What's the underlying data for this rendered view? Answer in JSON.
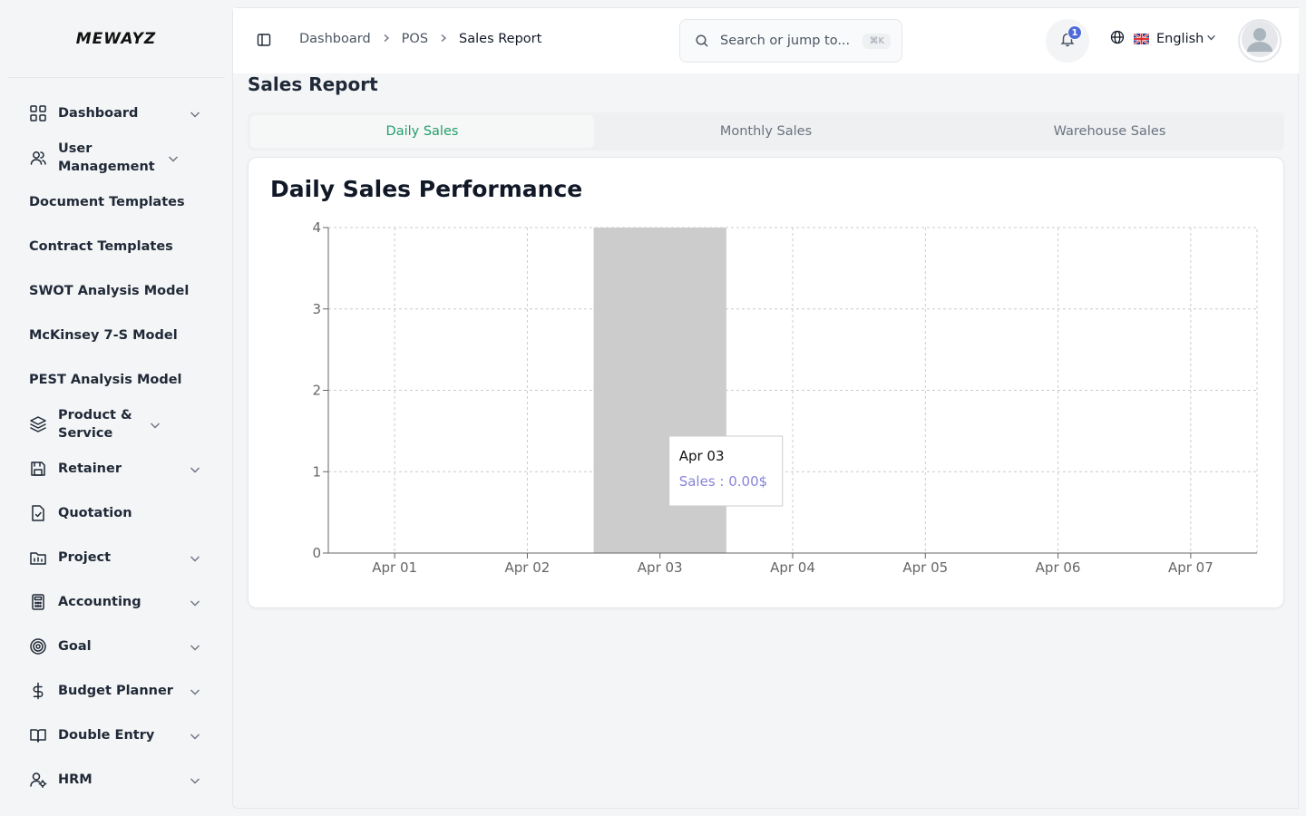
{
  "brand": {
    "name": "MEWAYZ"
  },
  "sidebar": {
    "items": [
      {
        "label": "Dashboard",
        "icon": "dashboard-grid-icon",
        "chevron": true
      },
      {
        "label": "User Management",
        "icon": "users-icon",
        "chevron": true
      },
      {
        "label": "Document Templates",
        "icon": "",
        "chevron": false
      },
      {
        "label": "Contract Templates",
        "icon": "",
        "chevron": false
      },
      {
        "label": "SWOT Analysis Model",
        "icon": "",
        "chevron": false
      },
      {
        "label": "McKinsey 7-S Model",
        "icon": "",
        "chevron": false
      },
      {
        "label": "PEST Analysis Model",
        "icon": "",
        "chevron": false
      },
      {
        "label": "Product & Service",
        "icon": "layers-icon",
        "chevron": true
      },
      {
        "label": "Retainer",
        "icon": "save-icon",
        "chevron": true
      },
      {
        "label": "Quotation",
        "icon": "file-check-icon",
        "chevron": false
      },
      {
        "label": "Project",
        "icon": "folder-chart-icon",
        "chevron": true
      },
      {
        "label": "Accounting",
        "icon": "calculator-icon",
        "chevron": true
      },
      {
        "label": "Goal",
        "icon": "target-icon",
        "chevron": true
      },
      {
        "label": "Budget Planner",
        "icon": "dollar-icon",
        "chevron": true
      },
      {
        "label": "Double Entry",
        "icon": "book-icon",
        "chevron": true
      },
      {
        "label": "HRM",
        "icon": "user-cog-icon",
        "chevron": true
      }
    ]
  },
  "header": {
    "breadcrumb": [
      "Dashboard",
      "POS",
      "Sales Report"
    ],
    "search_placeholder": "Search or jump to...",
    "search_shortcut": "⌘K",
    "notification_count": "1",
    "language": "English"
  },
  "page": {
    "title": "Sales Report",
    "tabs": [
      {
        "label": "Daily Sales",
        "active": true
      },
      {
        "label": "Monthly Sales",
        "active": false
      },
      {
        "label": "Warehouse Sales",
        "active": false
      }
    ]
  },
  "chart_data": {
    "type": "bar",
    "title": "Daily Sales Performance",
    "categories": [
      "Apr 01",
      "Apr 02",
      "Apr 03",
      "Apr 04",
      "Apr 05",
      "Apr 06",
      "Apr 07"
    ],
    "series": [
      {
        "name": "Sales",
        "values": [
          0,
          0,
          0,
          0,
          0,
          0,
          0
        ]
      }
    ],
    "ylim": [
      0,
      4
    ],
    "yticks": [
      0,
      1,
      2,
      3,
      4
    ],
    "grid": true,
    "highlighted_category": "Apr 03",
    "tooltip": {
      "title": "Apr 03",
      "text": "Sales : 0.00$"
    },
    "colors": {
      "series": "#8884d8",
      "hover": "#cccccc",
      "grid": "#cccccc",
      "axis": "#666666"
    }
  }
}
